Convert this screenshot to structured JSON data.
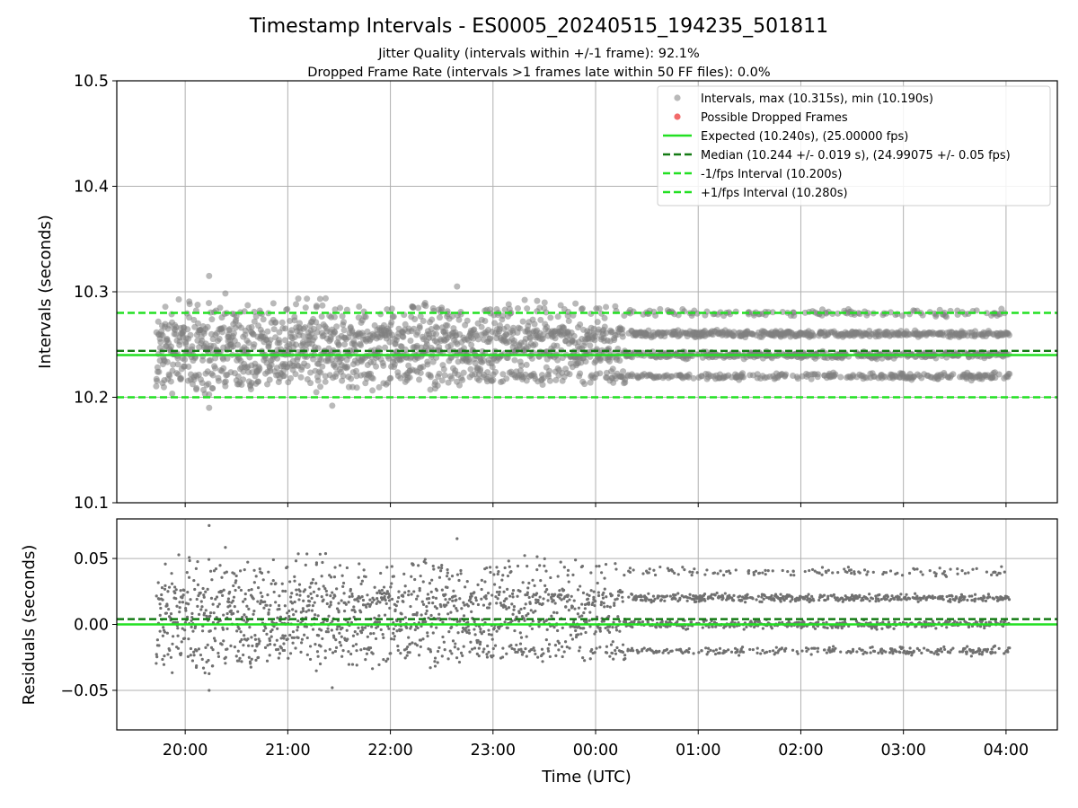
{
  "chart_data": [
    {
      "type": "scatter",
      "title": "Timestamp Intervals - ES0005_20240515_194235_501811",
      "subtitle_lines": [
        "Jitter Quality (intervals within +/-1 frame): 92.1%",
        "Dropped Frame Rate (intervals >1 frames late within 50 FF files): 0.0%"
      ],
      "xlabel": "",
      "ylabel": "Intervals (seconds)",
      "ylim": [
        10.1,
        10.5
      ],
      "yticks": [
        10.1,
        10.2,
        10.3,
        10.4,
        10.5
      ],
      "ytick_labels": [
        "10.1",
        "10.2",
        "10.3",
        "10.4",
        "10.5"
      ],
      "grid": true,
      "legend_position": "top-right",
      "point_color": "#808080",
      "dropped_color": "#f26a6a",
      "series": [
        {
          "name": "Intervals, max (10.315s), min (10.190s)",
          "style": "scatter",
          "color": "#808080",
          "x_range": [
            "19:43",
            "04:02"
          ],
          "levels": [
            10.22,
            10.24,
            10.26,
            10.28
          ],
          "max": 10.315,
          "min": 10.19
        },
        {
          "name": "Possible Dropped Frames",
          "style": "scatter",
          "color": "#f26a6a",
          "values": []
        },
        {
          "name": "Expected (10.240s), (25.00000 fps)",
          "style": "solid",
          "color": "#22e022",
          "y": 10.24
        },
        {
          "name": "Median (10.244 +/- 0.019 s), (24.99075 +/- 0.05 fps)",
          "style": "dashed",
          "color": "#147a14",
          "y": 10.244
        },
        {
          "name": "-1/fps Interval (10.200s)",
          "style": "dashed",
          "color": "#22e022",
          "y": 10.2
        },
        {
          "name": "+1/fps Interval (10.280s)",
          "style": "dashed",
          "color": "#22e022",
          "y": 10.28
        }
      ]
    },
    {
      "type": "scatter",
      "title": "",
      "xlabel": "Time (UTC)",
      "ylabel": "Residuals (seconds)",
      "ylim": [
        -0.08,
        0.08
      ],
      "yticks": [
        -0.05,
        0.0,
        0.05
      ],
      "ytick_labels": [
        "−0.05",
        "0.00",
        "0.05"
      ],
      "x_categories": [
        "20:00",
        "21:00",
        "22:00",
        "23:00",
        "00:00",
        "01:00",
        "02:00",
        "03:00",
        "04:00"
      ],
      "xlim": [
        "19:20",
        "04:30"
      ],
      "grid": true,
      "series": [
        {
          "name": "",
          "style": "scatter",
          "color": "#707070",
          "levels": [
            -0.02,
            0.0,
            0.02,
            0.04
          ],
          "max": 0.075,
          "min": -0.05
        },
        {
          "name": "",
          "style": "solid",
          "color": "#22e022",
          "y": 0.0
        },
        {
          "name": "",
          "style": "dashed",
          "color": "#147a14",
          "y": 0.004
        }
      ]
    }
  ]
}
